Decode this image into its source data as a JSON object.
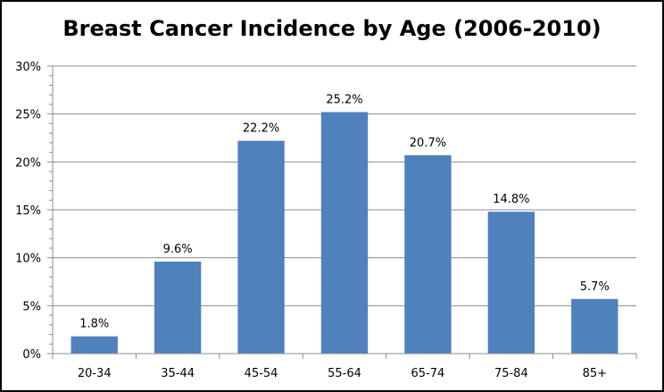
{
  "chart_data": {
    "type": "bar",
    "title": "Breast Cancer Incidence by Age (2006-2010)",
    "xlabel": "",
    "ylabel": "",
    "categories": [
      "20-34",
      "35-44",
      "45-54",
      "55-64",
      "65-74",
      "75-84",
      "85+"
    ],
    "values": [
      1.8,
      9.6,
      22.2,
      25.2,
      20.7,
      14.8,
      5.7
    ],
    "data_labels": [
      "1.8%",
      "9.6%",
      "22.2%",
      "25.2%",
      "20.7%",
      "14.8%",
      "5.7%"
    ],
    "ylim": [
      0,
      30
    ],
    "yticks": [
      0,
      5,
      10,
      15,
      20,
      25,
      30
    ],
    "ytick_labels": [
      "0%",
      "5%",
      "10%",
      "15%",
      "20%",
      "25%",
      "30%"
    ],
    "grid": true,
    "legend": "none",
    "bar_color": "#4F81BD",
    "grid_color": "#8C8C8C"
  }
}
